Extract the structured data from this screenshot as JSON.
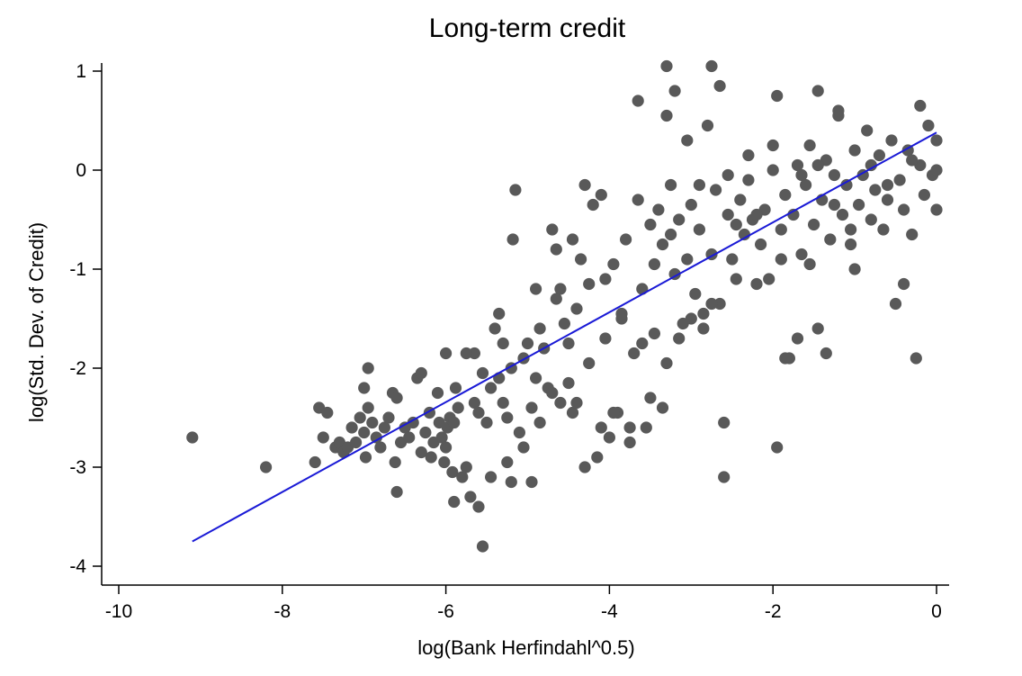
{
  "chart_data": {
    "type": "scatter",
    "title": "Long-term credit",
    "xlabel": "log(Bank Herfindahl^0.5)",
    "ylabel": "log(Std. Dev. of Credit)",
    "xlim": [
      -10,
      0
    ],
    "ylim": [
      -4.2,
      1.2
    ],
    "x_ticks": [
      -10,
      -8,
      -6,
      -4,
      -2,
      0
    ],
    "y_ticks": [
      -4,
      -3,
      -2,
      -1,
      0,
      1
    ],
    "x_tick_labels": [
      "-10",
      "-8",
      "-6",
      "-4",
      "-2",
      "0"
    ],
    "y_tick_labels": [
      "-4",
      "-3",
      "-2",
      "-1",
      "0",
      "1"
    ],
    "grid": false,
    "colors": {
      "points": "#595959",
      "fit_line": "#1a1ad6",
      "axis": "#000000"
    },
    "fit_line": {
      "x": [
        -9.1,
        0.0
      ],
      "y": [
        -3.75,
        0.38
      ]
    },
    "points": [
      [
        -9.1,
        -2.7
      ],
      [
        -8.2,
        -3.0
      ],
      [
        -7.6,
        -2.95
      ],
      [
        -7.5,
        -2.7
      ],
      [
        -7.55,
        -2.4
      ],
      [
        -7.45,
        -2.45
      ],
      [
        -7.35,
        -2.8
      ],
      [
        -7.3,
        -2.75
      ],
      [
        -7.25,
        -2.85
      ],
      [
        -7.2,
        -2.8
      ],
      [
        -7.15,
        -2.6
      ],
      [
        -7.1,
        -2.75
      ],
      [
        -7.05,
        -2.5
      ],
      [
        -7.0,
        -2.2
      ],
      [
        -7.0,
        -2.65
      ],
      [
        -6.98,
        -2.9
      ],
      [
        -6.95,
        -2.4
      ],
      [
        -6.9,
        -2.55
      ],
      [
        -6.85,
        -2.7
      ],
      [
        -6.8,
        -2.8
      ],
      [
        -6.75,
        -2.6
      ],
      [
        -6.7,
        -2.5
      ],
      [
        -6.65,
        -2.25
      ],
      [
        -6.62,
        -2.95
      ],
      [
        -6.6,
        -3.25
      ],
      [
        -6.55,
        -2.75
      ],
      [
        -6.5,
        -2.6
      ],
      [
        -6.45,
        -2.7
      ],
      [
        -6.4,
        -2.55
      ],
      [
        -6.35,
        -2.1
      ],
      [
        -6.3,
        -2.85
      ],
      [
        -6.25,
        -2.65
      ],
      [
        -6.2,
        -2.45
      ],
      [
        -6.18,
        -2.9
      ],
      [
        -6.15,
        -2.75
      ],
      [
        -6.1,
        -2.25
      ],
      [
        -6.08,
        -2.55
      ],
      [
        -6.05,
        -2.7
      ],
      [
        -6.02,
        -2.95
      ],
      [
        -6.0,
        -2.8
      ],
      [
        -5.98,
        -2.6
      ],
      [
        -5.95,
        -2.5
      ],
      [
        -5.92,
        -3.05
      ],
      [
        -5.9,
        -3.35
      ],
      [
        -5.88,
        -2.2
      ],
      [
        -5.85,
        -2.4
      ],
      [
        -5.8,
        -3.1
      ],
      [
        -5.75,
        -3.0
      ],
      [
        -5.7,
        -3.3
      ],
      [
        -5.65,
        -1.85
      ],
      [
        -5.6,
        -3.4
      ],
      [
        -5.55,
        -3.8
      ],
      [
        -5.5,
        -2.55
      ],
      [
        -5.45,
        -3.1
      ],
      [
        -5.4,
        -1.6
      ],
      [
        -5.35,
        -2.1
      ],
      [
        -5.3,
        -2.35
      ],
      [
        -5.25,
        -2.5
      ],
      [
        -5.2,
        -2.0
      ],
      [
        -5.18,
        -0.7
      ],
      [
        -5.15,
        -0.2
      ],
      [
        -5.1,
        -2.65
      ],
      [
        -5.05,
        -2.8
      ],
      [
        -5.0,
        -1.75
      ],
      [
        -4.95,
        -2.4
      ],
      [
        -4.9,
        -1.2
      ],
      [
        -4.85,
        -2.55
      ],
      [
        -4.8,
        -1.8
      ],
      [
        -4.75,
        -2.2
      ],
      [
        -4.7,
        -0.6
      ],
      [
        -4.65,
        -0.8
      ],
      [
        -4.6,
        -2.35
      ],
      [
        -4.55,
        -1.55
      ],
      [
        -4.5,
        -2.15
      ],
      [
        -4.45,
        -2.45
      ],
      [
        -4.4,
        -1.4
      ],
      [
        -4.35,
        -0.9
      ],
      [
        -4.3,
        -0.15
      ],
      [
        -4.25,
        -1.95
      ],
      [
        -4.2,
        -0.35
      ],
      [
        -4.15,
        -2.9
      ],
      [
        -4.1,
        -0.25
      ],
      [
        -4.05,
        -1.7
      ],
      [
        -4.0,
        -2.7
      ],
      [
        -3.95,
        -0.95
      ],
      [
        -3.9,
        -2.45
      ],
      [
        -3.85,
        -1.5
      ],
      [
        -3.8,
        -0.7
      ],
      [
        -3.75,
        -2.75
      ],
      [
        -3.7,
        -1.85
      ],
      [
        -3.65,
        -0.3
      ],
      [
        -3.6,
        -1.2
      ],
      [
        -3.55,
        -2.6
      ],
      [
        -3.5,
        -0.55
      ],
      [
        -3.45,
        -1.65
      ],
      [
        -3.4,
        -0.4
      ],
      [
        -3.35,
        -0.75
      ],
      [
        -3.3,
        -1.95
      ],
      [
        -3.25,
        -0.15
      ],
      [
        -3.2,
        -1.05
      ],
      [
        -3.15,
        -0.5
      ],
      [
        -3.1,
        -1.55
      ],
      [
        -3.05,
        0.3
      ],
      [
        -3.0,
        -0.35
      ],
      [
        -2.95,
        -1.25
      ],
      [
        -2.9,
        -0.6
      ],
      [
        -2.85,
        -1.45
      ],
      [
        -2.8,
        0.45
      ],
      [
        -2.75,
        -0.85
      ],
      [
        -2.7,
        -0.2
      ],
      [
        -2.65,
        -1.35
      ],
      [
        -2.6,
        -2.55
      ],
      [
        -2.55,
        -0.45
      ],
      [
        -2.5,
        -0.9
      ],
      [
        -2.45,
        -1.1
      ],
      [
        -2.4,
        -0.3
      ],
      [
        -2.35,
        -0.65
      ],
      [
        -2.3,
        -0.1
      ],
      [
        -2.25,
        -0.5
      ],
      [
        -2.2,
        -1.15
      ],
      [
        -2.15,
        -0.75
      ],
      [
        -2.1,
        -0.4
      ],
      [
        -2.05,
        -1.1
      ],
      [
        -2.0,
        0.0
      ],
      [
        -1.95,
        -2.8
      ],
      [
        -1.9,
        -0.6
      ],
      [
        -1.85,
        -0.25
      ],
      [
        -1.8,
        -1.9
      ],
      [
        -1.75,
        -0.45
      ],
      [
        -1.7,
        0.05
      ],
      [
        -1.65,
        -0.85
      ],
      [
        -1.6,
        -0.15
      ],
      [
        -1.55,
        0.25
      ],
      [
        -1.5,
        -0.55
      ],
      [
        -1.45,
        -1.6
      ],
      [
        -1.4,
        -0.3
      ],
      [
        -1.35,
        0.1
      ],
      [
        -1.3,
        -0.7
      ],
      [
        -1.25,
        -0.05
      ],
      [
        -1.2,
        0.55
      ],
      [
        -1.15,
        -0.45
      ],
      [
        -1.1,
        -0.15
      ],
      [
        -1.05,
        -0.6
      ],
      [
        -1.0,
        0.2
      ],
      [
        -0.95,
        -0.35
      ],
      [
        -0.9,
        -0.05
      ],
      [
        -0.85,
        0.4
      ],
      [
        -0.8,
        -0.5
      ],
      [
        -0.75,
        -0.2
      ],
      [
        -0.7,
        0.15
      ],
      [
        -0.65,
        -0.6
      ],
      [
        -0.6,
        -0.3
      ],
      [
        -0.55,
        0.3
      ],
      [
        -0.5,
        -1.35
      ],
      [
        -0.45,
        -0.1
      ],
      [
        -0.4,
        -0.4
      ],
      [
        -0.35,
        0.2
      ],
      [
        -0.3,
        -0.65
      ],
      [
        -0.25,
        -1.9
      ],
      [
        -0.2,
        0.05
      ],
      [
        -0.15,
        -0.25
      ],
      [
        -0.1,
        0.45
      ],
      [
        -0.05,
        -0.05
      ],
      [
        0.0,
        0.3
      ],
      [
        0.0,
        -0.4
      ],
      [
        0.0,
        0.0
      ],
      [
        -3.3,
        1.05
      ],
      [
        -2.75,
        1.05
      ],
      [
        -3.2,
        0.8
      ],
      [
        -2.65,
        0.85
      ],
      [
        -1.95,
        0.75
      ],
      [
        -1.45,
        0.8
      ],
      [
        -1.2,
        0.6
      ],
      [
        -0.2,
        0.65
      ],
      [
        -3.65,
        0.7
      ],
      [
        -3.3,
        0.55
      ],
      [
        -2.3,
        0.15
      ],
      [
        -2.0,
        0.25
      ],
      [
        -6.0,
        -1.85
      ],
      [
        -5.75,
        -1.85
      ],
      [
        -5.6,
        -2.45
      ],
      [
        -5.45,
        -2.2
      ],
      [
        -5.3,
        -1.75
      ],
      [
        -5.25,
        -2.95
      ],
      [
        -5.2,
        -3.15
      ],
      [
        -4.95,
        -3.15
      ],
      [
        -4.9,
        -2.1
      ],
      [
        -4.7,
        -2.25
      ],
      [
        -4.65,
        -1.3
      ],
      [
        -4.5,
        -1.75
      ],
      [
        -4.4,
        -2.35
      ],
      [
        -4.3,
        -3.0
      ],
      [
        -4.1,
        -2.6
      ],
      [
        -3.95,
        -2.45
      ],
      [
        -3.75,
        -2.6
      ],
      [
        -3.5,
        -2.3
      ],
      [
        -3.35,
        -2.4
      ],
      [
        -3.15,
        -1.7
      ],
      [
        -3.0,
        -1.5
      ],
      [
        -2.85,
        -1.6
      ],
      [
        -2.75,
        -1.35
      ],
      [
        -2.6,
        -3.1
      ],
      [
        -1.85,
        -1.9
      ],
      [
        -1.7,
        -1.7
      ],
      [
        -1.55,
        -0.95
      ],
      [
        -1.35,
        -1.85
      ],
      [
        -1.0,
        -1.0
      ],
      [
        -0.4,
        -1.15
      ],
      [
        -6.95,
        -2.0
      ],
      [
        -6.6,
        -2.3
      ],
      [
        -6.3,
        -2.05
      ],
      [
        -5.9,
        -2.55
      ],
      [
        -5.65,
        -2.35
      ],
      [
        -5.55,
        -2.05
      ],
      [
        -5.35,
        -1.45
      ],
      [
        -5.05,
        -1.9
      ],
      [
        -4.85,
        -1.6
      ],
      [
        -4.6,
        -1.2
      ],
      [
        -4.45,
        -0.7
      ],
      [
        -4.25,
        -1.15
      ],
      [
        -4.05,
        -1.1
      ],
      [
        -3.85,
        -1.45
      ],
      [
        -3.6,
        -1.75
      ],
      [
        -3.45,
        -0.95
      ],
      [
        -3.25,
        -0.65
      ],
      [
        -3.05,
        -0.9
      ],
      [
        -2.9,
        -0.15
      ],
      [
        -2.55,
        -0.05
      ],
      [
        -2.45,
        -0.55
      ],
      [
        -2.2,
        -0.45
      ],
      [
        -1.9,
        -0.9
      ],
      [
        -1.65,
        -0.05
      ],
      [
        -1.45,
        0.05
      ],
      [
        -1.25,
        -0.35
      ],
      [
        -1.05,
        -0.75
      ],
      [
        -0.8,
        0.05
      ],
      [
        -0.6,
        -0.15
      ],
      [
        -0.3,
        0.1
      ]
    ]
  }
}
